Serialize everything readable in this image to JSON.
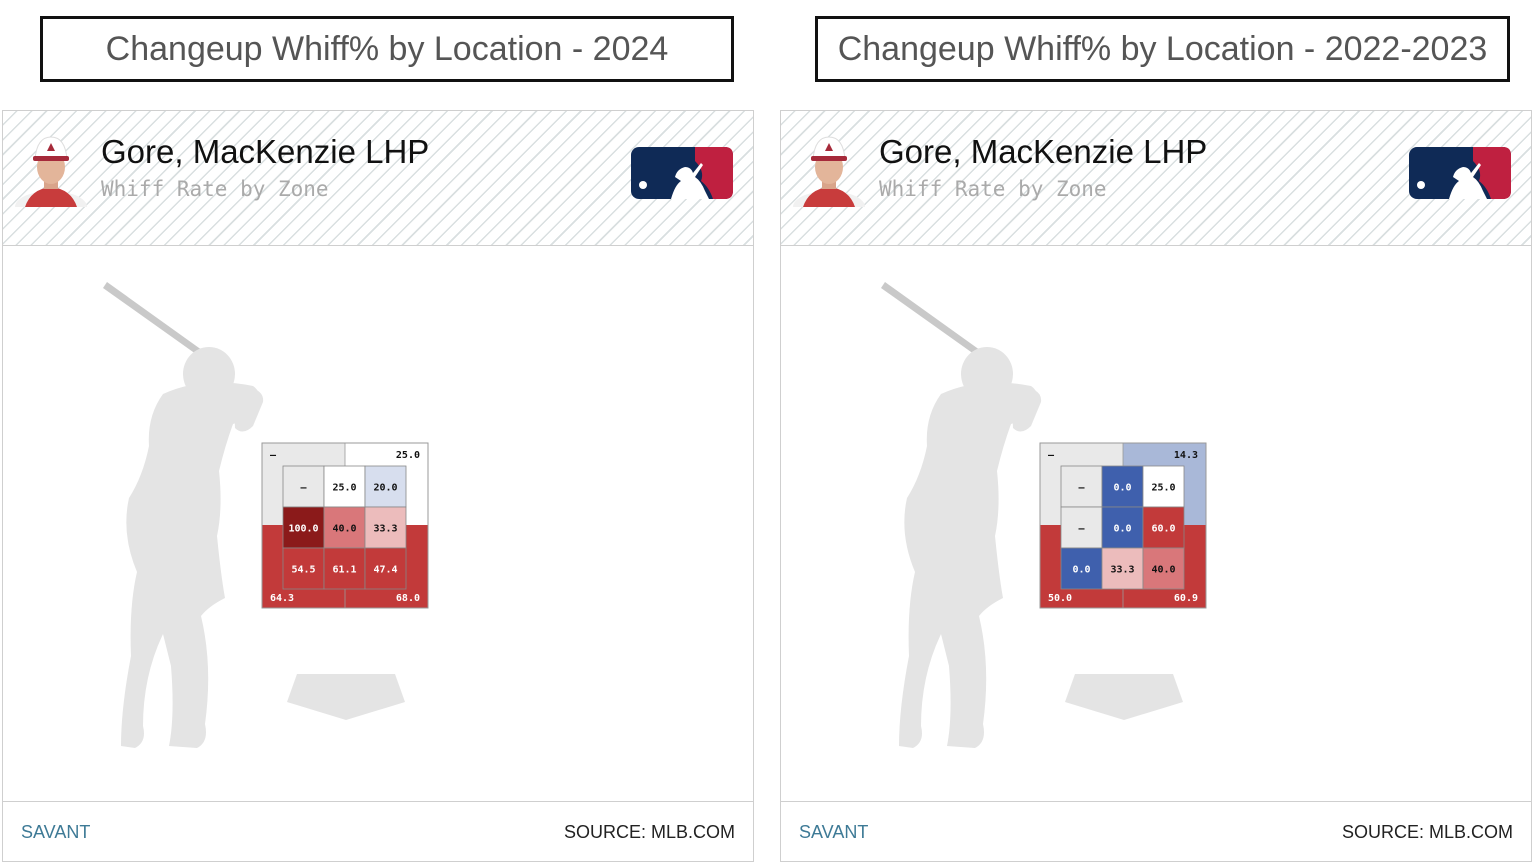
{
  "titles": {
    "left": "Changeup Whiff% by Location - 2024",
    "right": "Changeup Whiff% by Location - 2022-2023"
  },
  "panels": [
    {
      "player_name": "Gore, MacKenzie LHP",
      "subtitle": "Whiff Rate by Zone",
      "brand": "SAVANT",
      "source": "SOURCE: MLB.COM"
    },
    {
      "player_name": "Gore, MacKenzie LHP",
      "subtitle": "Whiff Rate by Zone",
      "brand": "SAVANT",
      "source": "SOURCE: MLB.COM"
    }
  ],
  "colors": {
    "dark_red": "#8b1a1a",
    "red": "#c23a3a",
    "mid_red": "#d9777a",
    "light_red": "#ecbcbc",
    "white": "#ffffff",
    "light_blue": "#d7deee",
    "mid_blue": "#a9b8d8",
    "blue": "#3f60ad",
    "none": "#e9e9e9",
    "mlb_navy": "#0f2a56",
    "mlb_red": "#bf2040"
  },
  "chart_data": [
    {
      "type": "heatmap",
      "title": "Changeup Whiff% by Location - 2024",
      "metric": "Whiff Rate by Zone",
      "zones": [
        {
          "zone": 1,
          "value": "–",
          "color": "none"
        },
        {
          "zone": 2,
          "value": "25.0",
          "color": "white"
        },
        {
          "zone": 3,
          "value": "20.0",
          "color": "light_blue"
        },
        {
          "zone": 4,
          "value": "100.0",
          "color": "dark_red"
        },
        {
          "zone": 5,
          "value": "40.0",
          "color": "mid_red"
        },
        {
          "zone": 6,
          "value": "33.3",
          "color": "light_red"
        },
        {
          "zone": 7,
          "value": "54.5",
          "color": "red"
        },
        {
          "zone": 8,
          "value": "61.1",
          "color": "red"
        },
        {
          "zone": 9,
          "value": "47.4",
          "color": "red"
        },
        {
          "zone": 11,
          "value": "–",
          "color": "none"
        },
        {
          "zone": 12,
          "value": "25.0",
          "color": "white"
        },
        {
          "zone": 13,
          "value": "64.3",
          "color": "red"
        },
        {
          "zone": 14,
          "value": "68.0",
          "color": "red"
        }
      ]
    },
    {
      "type": "heatmap",
      "title": "Changeup Whiff% by Location - 2022-2023",
      "metric": "Whiff Rate by Zone",
      "zones": [
        {
          "zone": 1,
          "value": "–",
          "color": "none"
        },
        {
          "zone": 2,
          "value": "0.0",
          "color": "blue"
        },
        {
          "zone": 3,
          "value": "25.0",
          "color": "white"
        },
        {
          "zone": 4,
          "value": "–",
          "color": "none"
        },
        {
          "zone": 5,
          "value": "0.0",
          "color": "blue"
        },
        {
          "zone": 6,
          "value": "60.0",
          "color": "red"
        },
        {
          "zone": 7,
          "value": "0.0",
          "color": "blue"
        },
        {
          "zone": 8,
          "value": "33.3",
          "color": "light_red"
        },
        {
          "zone": 9,
          "value": "40.0",
          "color": "mid_red"
        },
        {
          "zone": 11,
          "value": "–",
          "color": "none"
        },
        {
          "zone": 12,
          "value": "14.3",
          "color": "mid_blue"
        },
        {
          "zone": 13,
          "value": "50.0",
          "color": "red"
        },
        {
          "zone": 14,
          "value": "60.9",
          "color": "red"
        }
      ]
    }
  ]
}
